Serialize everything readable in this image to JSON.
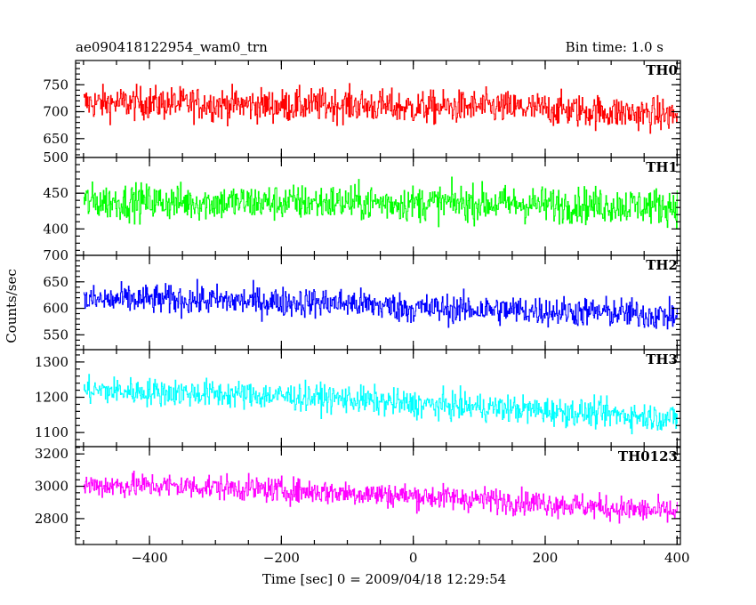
{
  "header": {
    "title": "ae090418122954_wam0_trn",
    "bin_time": "Bin time: 1.0 s"
  },
  "chart_data": {
    "type": "line",
    "xlabel": "Time [sec] 0 = 2009/04/18 12:29:54",
    "ylabel": "Counts/sec",
    "xlim": [
      -512,
      405
    ],
    "xticks": [
      -400,
      -200,
      0,
      200,
      400
    ],
    "xtick_labels": [
      "−400",
      "−200",
      "0",
      "200",
      "400"
    ],
    "data_x_range": [
      -500,
      400
    ],
    "panels": [
      {
        "name": "TH0",
        "color": "#ff0000",
        "ylim": [
          615,
          795
        ],
        "yticks": [
          650,
          700,
          750
        ],
        "ytick_labels": [
          "650",
          "700",
          "750"
        ],
        "mean_start": 718,
        "mean_end": 693,
        "noise": 22,
        "x_knots": [
          -500,
          -400,
          -300,
          -200,
          -100,
          0,
          100,
          200,
          300,
          400
        ],
        "trend": [
          716,
          716,
          714,
          711,
          713,
          707,
          709,
          705,
          699,
          693
        ]
      },
      {
        "name": "TH1",
        "color": "#00ff00",
        "ylim": [
          363,
          500
        ],
        "yticks": [
          400,
          450,
          500
        ],
        "ytick_labels": [
          "400",
          "450",
          "500"
        ],
        "mean_start": 438,
        "mean_end": 432,
        "noise": 18,
        "x_knots": [
          -500,
          -400,
          -300,
          -200,
          -100,
          0,
          100,
          200,
          300,
          400
        ],
        "trend": [
          438,
          438,
          437,
          437,
          437,
          436,
          436,
          434,
          433,
          432
        ]
      },
      {
        "name": "TH2",
        "color": "#0000ff",
        "ylim": [
          522,
          700
        ],
        "yticks": [
          550,
          600,
          650,
          700
        ],
        "ytick_labels": [
          "550",
          "600",
          "650",
          "700"
        ],
        "mean_start": 617,
        "mean_end": 585,
        "noise": 20,
        "x_knots": [
          -500,
          -400,
          -300,
          -200,
          -100,
          0,
          100,
          200,
          300,
          400
        ],
        "trend": [
          615,
          617,
          615,
          612,
          610,
          600,
          598,
          595,
          592,
          585
        ]
      },
      {
        "name": "TH3",
        "color": "#00ffff",
        "ylim": [
          1060,
          1335
        ],
        "yticks": [
          1100,
          1200,
          1300
        ],
        "ytick_labels": [
          "1100",
          "1200",
          "1300"
        ],
        "mean_start": 1220,
        "mean_end": 1140,
        "noise": 28,
        "x_knots": [
          -500,
          -400,
          -300,
          -200,
          -100,
          0,
          100,
          200,
          300,
          400
        ],
        "trend": [
          1220,
          1215,
          1210,
          1203,
          1195,
          1180,
          1172,
          1162,
          1152,
          1140
        ]
      },
      {
        "name": "TH0123",
        "color": "#ff00ff",
        "ylim": [
          2640,
          3245
        ],
        "yticks": [
          2800,
          3000,
          3200
        ],
        "ytick_labels": [
          "2800",
          "3000",
          "3200"
        ],
        "mean_start": 3005,
        "mean_end": 2840,
        "noise": 55,
        "x_knots": [
          -500,
          -400,
          -300,
          -200,
          -100,
          0,
          100,
          200,
          300,
          400
        ],
        "trend": [
          3005,
          3005,
          2995,
          2975,
          2960,
          2940,
          2920,
          2895,
          2865,
          2840
        ]
      }
    ]
  }
}
